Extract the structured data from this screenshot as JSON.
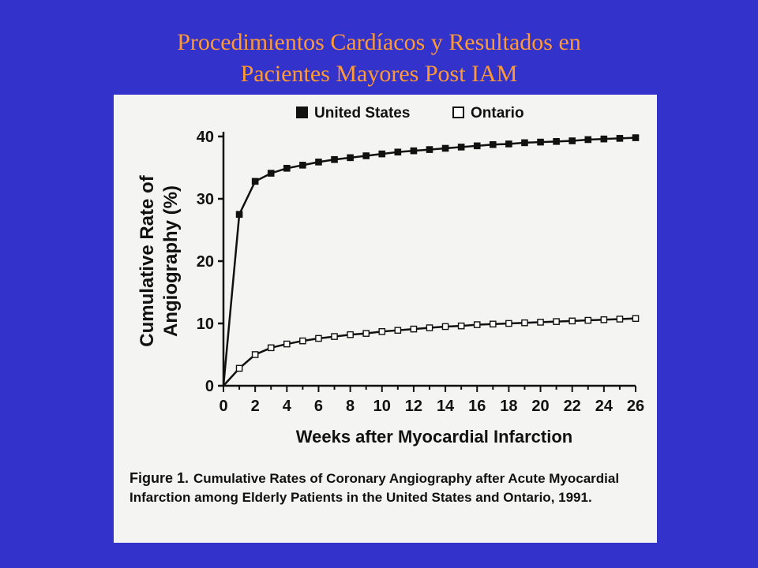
{
  "slide": {
    "title_line1": "Procedimientos Cardíacos y Resultados en",
    "title_line2": "Pacientes Mayores Post IAM"
  },
  "figure": {
    "caption_label": "Figure 1.",
    "caption_text": "Cumulative Rates of Coronary Angiography after Acute Myocardial Infarction among Elderly Patients in the United States and Ontario, 1991."
  },
  "colors": {
    "background": "#3333cc",
    "title": "#ff9933",
    "panel": "#f4f4f2",
    "ink": "#111111"
  },
  "chart_data": {
    "type": "line",
    "xlabel": "Weeks after Myocardial Infarction",
    "ylabel": "Cumulative Rate of Angiography (%)",
    "ylabel_lines": [
      "Cumulative Rate of",
      "Angiography (%)"
    ],
    "xlim": [
      0,
      26
    ],
    "ylim": [
      0,
      40
    ],
    "xticks": [
      0,
      2,
      4,
      6,
      8,
      10,
      12,
      14,
      16,
      18,
      20,
      22,
      24,
      26
    ],
    "yticks": [
      0,
      10,
      20,
      30,
      40
    ],
    "grid": false,
    "legend_position": "top",
    "x": [
      0,
      1,
      2,
      3,
      4,
      5,
      6,
      7,
      8,
      9,
      10,
      11,
      12,
      13,
      14,
      15,
      16,
      17,
      18,
      19,
      20,
      21,
      22,
      23,
      24,
      25,
      26
    ],
    "series": [
      {
        "name": "United States",
        "marker": "filled-square",
        "values": [
          0,
          27.5,
          32.8,
          34.1,
          34.9,
          35.4,
          35.9,
          36.3,
          36.6,
          36.9,
          37.2,
          37.5,
          37.7,
          37.9,
          38.1,
          38.3,
          38.5,
          38.7,
          38.8,
          39.0,
          39.1,
          39.2,
          39.3,
          39.5,
          39.6,
          39.7,
          39.8
        ]
      },
      {
        "name": "Ontario",
        "marker": "open-square",
        "values": [
          0,
          2.8,
          5.0,
          6.1,
          6.7,
          7.2,
          7.6,
          7.9,
          8.2,
          8.4,
          8.7,
          8.9,
          9.1,
          9.3,
          9.5,
          9.6,
          9.8,
          9.9,
          10.0,
          10.1,
          10.2,
          10.3,
          10.4,
          10.5,
          10.6,
          10.7,
          10.8
        ]
      }
    ]
  }
}
